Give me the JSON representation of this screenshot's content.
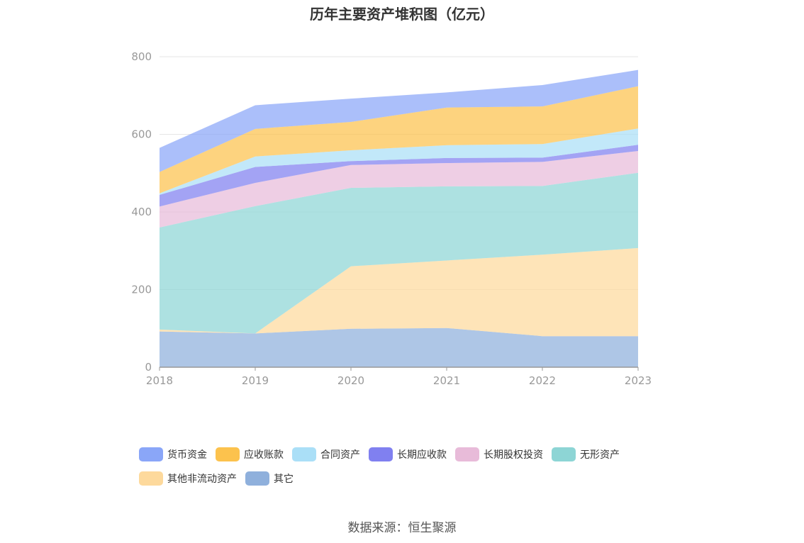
{
  "title": "历年主要资产堆积图（亿元）",
  "source": "数据来源：恒生聚源",
  "chart_data": {
    "type": "area",
    "stacked": true,
    "title": "历年主要资产堆积图（亿元）",
    "categories": [
      "2018",
      "2019",
      "2020",
      "2021",
      "2022",
      "2023"
    ],
    "y_ticks": [
      "0",
      "200",
      "400",
      "600",
      "800"
    ],
    "ylim": [
      0,
      800
    ],
    "grid": true,
    "legend_position": "bottom",
    "series": [
      {
        "name": "其它",
        "color": "#8fb0dc",
        "values": [
          92,
          87,
          99,
          101,
          80,
          80
        ]
      },
      {
        "name": "其他非流动资产",
        "color": "#fdd99c",
        "values": [
          5,
          0,
          161,
          174,
          210,
          227
        ]
      },
      {
        "name": "无形资产",
        "color": "#8dd5d5",
        "values": [
          263,
          328,
          202,
          191,
          177,
          194
        ]
      },
      {
        "name": "长期股权投资",
        "color": "#e8bbd9",
        "values": [
          54,
          60,
          59,
          60,
          62,
          56
        ]
      },
      {
        "name": "长期应收款",
        "color": "#8080f0",
        "values": [
          30,
          41,
          10,
          13,
          11,
          16
        ]
      },
      {
        "name": "合同资产",
        "color": "#aadff7",
        "values": [
          4,
          27,
          28,
          33,
          35,
          42
        ]
      },
      {
        "name": "应收账款",
        "color": "#fcc24d",
        "values": [
          55,
          71,
          73,
          97,
          97,
          109
        ]
      },
      {
        "name": "货币资金",
        "color": "#8aa6f8",
        "values": [
          62,
          61,
          60,
          39,
          55,
          42
        ]
      }
    ]
  }
}
